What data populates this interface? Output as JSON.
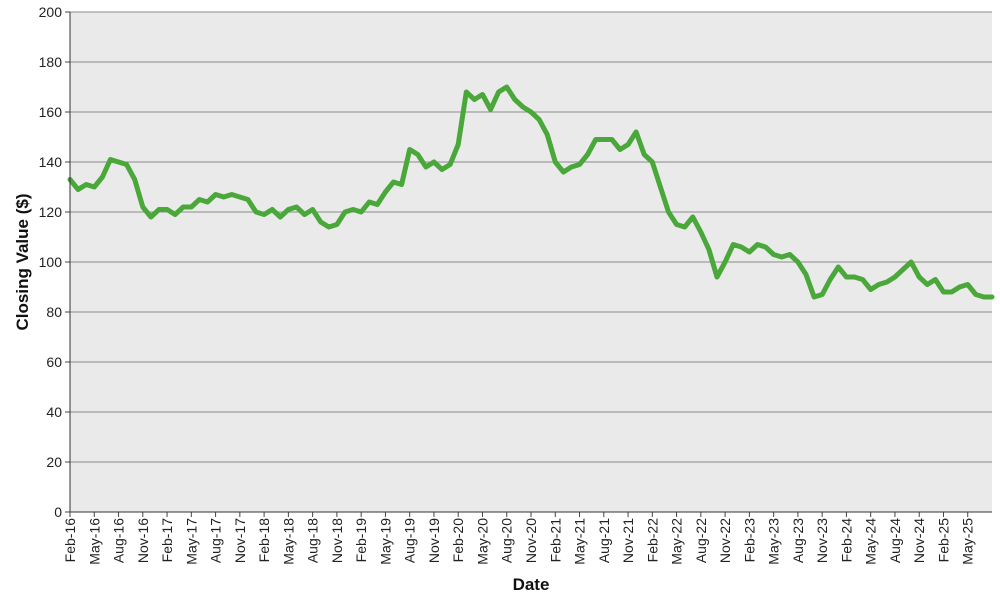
{
  "chart_data": {
    "type": "line",
    "title": "",
    "xlabel": "Date",
    "ylabel": "Closing Value ($)",
    "ylim": [
      0,
      200
    ],
    "xlim": [
      "2016-02",
      "2025-08"
    ],
    "y_ticks": [
      "0",
      "20",
      "40",
      "60",
      "80",
      "100",
      "120",
      "140",
      "160",
      "180",
      "200"
    ],
    "x_ticks": [
      "Feb-16",
      "May-16",
      "Aug-16",
      "Nov-16",
      "Feb-17",
      "May-17",
      "Aug-17",
      "Nov-17",
      "Feb-18",
      "May-18",
      "Aug-18",
      "Nov-18",
      "Feb-19",
      "May-19",
      "Aug-19",
      "Nov-19",
      "Feb-20",
      "May-20",
      "Aug-20",
      "Nov-20",
      "Feb-21",
      "May-21",
      "Aug-21",
      "Nov-21",
      "Feb-22",
      "May-22",
      "Aug-22",
      "Nov-22",
      "Feb-23",
      "May-23",
      "Aug-23",
      "Nov-23",
      "Feb-24",
      "May-24",
      "Aug-24",
      "Nov-24",
      "Feb-25",
      "May-25"
    ],
    "grid": "horizontal",
    "line_color": "#4aa83a",
    "plot_background": "#eaeaea",
    "series": [
      {
        "x": [
          "2016-02",
          "2016-03",
          "2016-04",
          "2016-05",
          "2016-06",
          "2016-07",
          "2016-08",
          "2016-09",
          "2016-10",
          "2016-11",
          "2016-12",
          "2017-01",
          "2017-02",
          "2017-03",
          "2017-04",
          "2017-05",
          "2017-06",
          "2017-07",
          "2017-08",
          "2017-09",
          "2017-10",
          "2017-11",
          "2017-12",
          "2018-01",
          "2018-02",
          "2018-03",
          "2018-04",
          "2018-05",
          "2018-06",
          "2018-07",
          "2018-08",
          "2018-09",
          "2018-10",
          "2018-11",
          "2018-12",
          "2019-01",
          "2019-02",
          "2019-03",
          "2019-04",
          "2019-05",
          "2019-06",
          "2019-07",
          "2019-08",
          "2019-09",
          "2019-10",
          "2019-11",
          "2019-12",
          "2020-01",
          "2020-02",
          "2020-03",
          "2020-04",
          "2020-05",
          "2020-06",
          "2020-07",
          "2020-08",
          "2020-09",
          "2020-10",
          "2020-11",
          "2020-12",
          "2021-01",
          "2021-02",
          "2021-03",
          "2021-04",
          "2021-05",
          "2021-06",
          "2021-07",
          "2021-08",
          "2021-09",
          "2021-10",
          "2021-11",
          "2021-12",
          "2022-01",
          "2022-02",
          "2022-03",
          "2022-04",
          "2022-05",
          "2022-06",
          "2022-07",
          "2022-08",
          "2022-09",
          "2022-10",
          "2022-11",
          "2022-12",
          "2023-01",
          "2023-02",
          "2023-03",
          "2023-04",
          "2023-05",
          "2023-06",
          "2023-07",
          "2023-08",
          "2023-09",
          "2023-10",
          "2023-11",
          "2023-12",
          "2024-01",
          "2024-02",
          "2024-03",
          "2024-04",
          "2024-05",
          "2024-06",
          "2024-07",
          "2024-08",
          "2024-09",
          "2024-10",
          "2024-11",
          "2024-12",
          "2025-01",
          "2025-02",
          "2025-03",
          "2025-04",
          "2025-05",
          "2025-06",
          "2025-07",
          "2025-08"
        ],
        "y": [
          133,
          129,
          131,
          130,
          134,
          141,
          140,
          139,
          133,
          122,
          118,
          121,
          121,
          119,
          122,
          122,
          125,
          124,
          127,
          126,
          127,
          126,
          125,
          120,
          119,
          121,
          118,
          121,
          122,
          119,
          121,
          116,
          114,
          115,
          120,
          121,
          120,
          124,
          123,
          128,
          132,
          131,
          145,
          143,
          138,
          140,
          137,
          139,
          147,
          168,
          165,
          167,
          161,
          168,
          170,
          165,
          162,
          160,
          157,
          151,
          140,
          136,
          138,
          139,
          143,
          149,
          149,
          149,
          145,
          147,
          152,
          143,
          140,
          130,
          120,
          115,
          114,
          118,
          112,
          105,
          94,
          100,
          107,
          106,
          104,
          107,
          106,
          103,
          102,
          103,
          100,
          95,
          86,
          87,
          93,
          98,
          94,
          94,
          93,
          89,
          91,
          92,
          94,
          97,
          100,
          94,
          91,
          93,
          88,
          88,
          90,
          91,
          87,
          86,
          86
        ]
      }
    ]
  }
}
